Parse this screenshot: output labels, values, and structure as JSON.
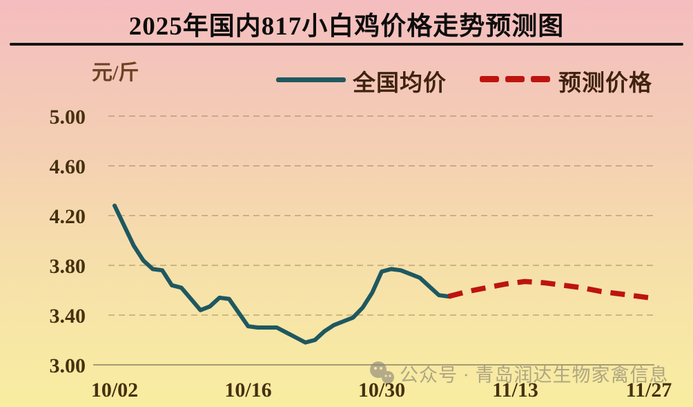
{
  "header": {
    "title": "2025年国内817小白鸡价格走势预测图"
  },
  "watermark": {
    "icon": "wechat-official-account-icon",
    "text": "公众号 · 青岛润达生物家禽信息"
  },
  "colors": {
    "actual_line": "#1e5860",
    "forecast_line": "#bd1410",
    "axis_label": "#46300e",
    "gridline": "#8a6a40",
    "axis_line": "#a59b72",
    "title_text": "#0d0d0d",
    "unit_text": "#6b4423",
    "legend_text": "#3f2310"
  },
  "chart_data": {
    "type": "line",
    "title": "2025年国内817小白鸡价格走势预测图",
    "xlabel": "",
    "ylabel": "元/斤",
    "ylim": [
      3.0,
      5.0
    ],
    "grid": "horizontal-dashed",
    "legend_position": "top-center",
    "y_tick_labels": [
      "5.00",
      "4.60",
      "4.20",
      "3.80",
      "3.40",
      "3.00"
    ],
    "y_tick_values": [
      5.0,
      4.6,
      4.2,
      3.8,
      3.4,
      3.0
    ],
    "x_tick_labels": [
      "10/02",
      "10/16",
      "10/30",
      "11/13",
      "11/27"
    ],
    "x_tick_days": [
      0,
      14,
      28,
      42,
      56
    ],
    "x_unit": "day index from 10/02",
    "series": [
      {
        "name": "全国均价",
        "style": "solid",
        "color": "#1e5860",
        "points": [
          [
            0,
            4.28
          ],
          [
            1,
            4.12
          ],
          [
            2,
            3.96
          ],
          [
            3,
            3.84
          ],
          [
            4,
            3.77
          ],
          [
            5,
            3.76
          ],
          [
            6,
            3.64
          ],
          [
            7,
            3.62
          ],
          [
            8,
            3.53
          ],
          [
            9,
            3.44
          ],
          [
            10,
            3.47
          ],
          [
            11,
            3.54
          ],
          [
            12,
            3.53
          ],
          [
            13,
            3.42
          ],
          [
            14,
            3.31
          ],
          [
            15,
            3.3
          ],
          [
            16,
            3.3
          ],
          [
            17,
            3.3
          ],
          [
            18,
            3.26
          ],
          [
            19,
            3.22
          ],
          [
            20,
            3.18
          ],
          [
            21,
            3.2
          ],
          [
            22,
            3.27
          ],
          [
            23,
            3.32
          ],
          [
            24,
            3.35
          ],
          [
            25,
            3.38
          ],
          [
            26,
            3.46
          ],
          [
            27,
            3.58
          ],
          [
            28,
            3.75
          ],
          [
            29,
            3.77
          ],
          [
            30,
            3.76
          ],
          [
            31,
            3.73
          ],
          [
            32,
            3.7
          ],
          [
            33,
            3.63
          ],
          [
            34,
            3.56
          ],
          [
            35,
            3.55
          ]
        ]
      },
      {
        "name": "预测价格",
        "style": "dashed",
        "color": "#bd1410",
        "points": [
          [
            35,
            3.55
          ],
          [
            37,
            3.59
          ],
          [
            39,
            3.62
          ],
          [
            41,
            3.65
          ],
          [
            43,
            3.67
          ],
          [
            45,
            3.66
          ],
          [
            47,
            3.64
          ],
          [
            49,
            3.62
          ],
          [
            51,
            3.59
          ],
          [
            53,
            3.57
          ],
          [
            56,
            3.54
          ]
        ]
      }
    ]
  }
}
